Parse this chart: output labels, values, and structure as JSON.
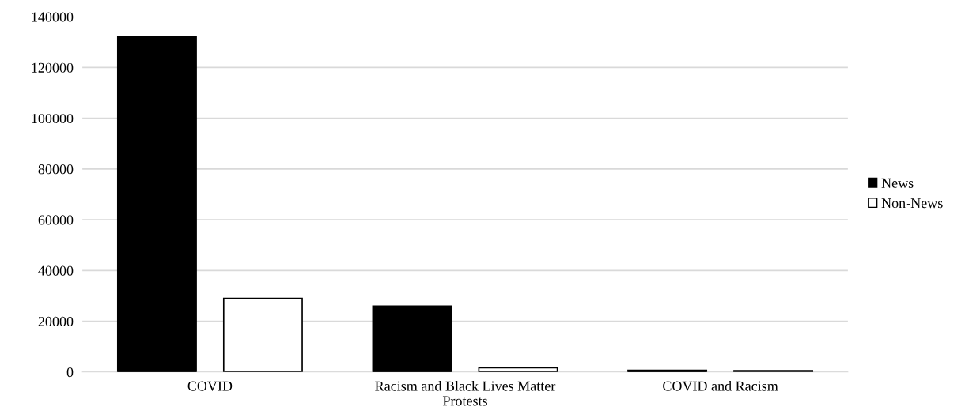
{
  "chart_data": {
    "type": "bar",
    "categories": [
      "COVID",
      "Racism and Black Lives Matter\nProtests",
      "COVID and Racism"
    ],
    "series": [
      {
        "name": "News",
        "color": "#000000",
        "values": [
          132000,
          26000,
          700
        ]
      },
      {
        "name": "Non-News",
        "color": "#ffffff",
        "values": [
          29000,
          1700,
          500
        ]
      }
    ],
    "ylim": [
      0,
      140000
    ],
    "yticks": [
      0,
      20000,
      40000,
      60000,
      80000,
      100000,
      120000,
      140000
    ],
    "grid": "y",
    "legend": "right"
  }
}
